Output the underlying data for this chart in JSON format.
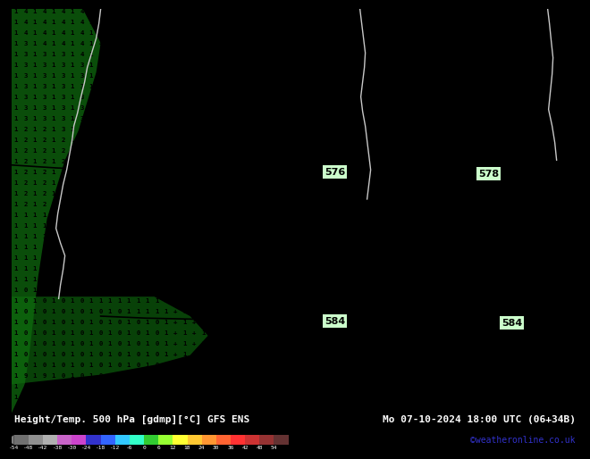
{
  "title_left": "Height/Temp. 500 hPa [gdmp][°C] GFS ENS",
  "title_right": "Mo 07-10-2024 18:00 UTC (06+34B)",
  "credit": "©weatheronline.co.uk",
  "map_bg": "#1a9e1a",
  "dark_patch_color": "#0f6e0f",
  "colorbar_values": [
    "-54",
    "-48",
    "-42",
    "-38",
    "-30",
    "-24",
    "-18",
    "-12",
    "-6",
    "0",
    "6",
    "12",
    "18",
    "24",
    "30",
    "36",
    "42",
    "48",
    "54"
  ],
  "colorbar_colors": [
    "#707070",
    "#909090",
    "#b0b0b0",
    "#c864c8",
    "#cc44cc",
    "#3232cc",
    "#3264ff",
    "#32c8ff",
    "#32ffc8",
    "#32cc32",
    "#96ff32",
    "#ffff32",
    "#ffc832",
    "#ff9632",
    "#ff6432",
    "#ff3232",
    "#cc3232",
    "#963232",
    "#643232"
  ],
  "text_color_credit": "#3232cc",
  "grid_number_color": "#000000",
  "contour_line_color": "#000000",
  "coastline_color": "#c8c8c8",
  "contour_label_color": "#000000",
  "contour_label_bg": "#c8ffc8",
  "bottom_bg": "#000000",
  "bottom_text_color": "#ffffff"
}
